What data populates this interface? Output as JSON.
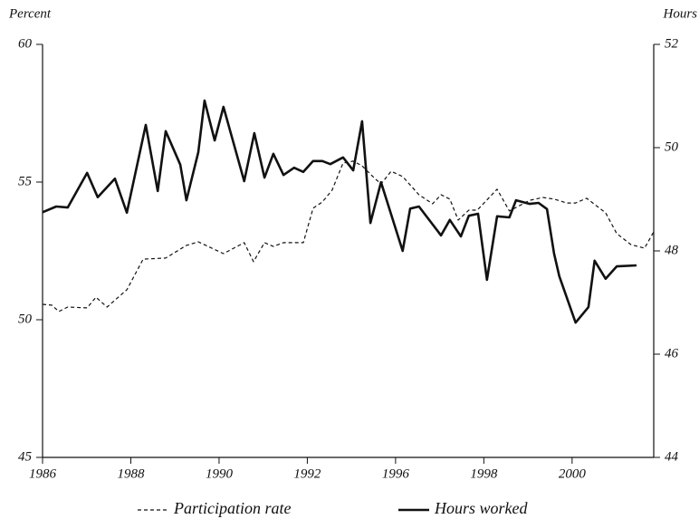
{
  "chart_data": {
    "type": "line",
    "y_label": "Percent",
    "y2_label": "Hours",
    "xlim": [
      1986,
      1999.85
    ],
    "xticks": [
      1986,
      1988,
      1990,
      1992,
      {
        "value": 1994,
        "label": "1996"
      },
      {
        "value": 1996,
        "label": "1998"
      },
      {
        "value": 1998,
        "label": "2000"
      }
    ],
    "ylim": [
      45,
      60
    ],
    "yticks": [
      45,
      50,
      55,
      60
    ],
    "y2lim": [
      44,
      52
    ],
    "y2ticks": [
      44,
      46,
      48,
      50,
      52
    ],
    "grid": false,
    "series": [
      {
        "name": "Participation rate",
        "color": "#111111",
        "dashed": true,
        "axis": "y",
        "x": [
          1986.0,
          1986.21,
          1986.37,
          1986.57,
          1987.01,
          1987.21,
          1987.46,
          1987.91,
          1988.28,
          1988.79,
          1989.26,
          1989.53,
          1990.1,
          1990.57,
          1990.78,
          1991.03,
          1991.23,
          1991.46,
          1991.91,
          1992.13,
          1992.34,
          1992.56,
          1992.81,
          1993.04,
          1993.24,
          1993.51,
          1993.67,
          1993.9,
          1994.16,
          1994.53,
          1994.84,
          1995.03,
          1995.23,
          1995.42,
          1995.66,
          1995.85,
          1996.3,
          1996.58,
          1997.04,
          1997.34,
          1997.59,
          1997.88,
          1998.08,
          1998.33,
          1998.76,
          1999.01,
          1999.33,
          1999.64,
          1999.85
        ],
        "values": [
          50.56,
          50.53,
          50.3,
          50.46,
          50.43,
          50.82,
          50.46,
          51.09,
          52.2,
          52.24,
          52.7,
          52.83,
          52.4,
          52.8,
          52.11,
          52.8,
          52.66,
          52.8,
          52.8,
          54.05,
          54.28,
          54.7,
          55.69,
          55.76,
          55.59,
          55.16,
          54.93,
          55.39,
          55.2,
          54.54,
          54.21,
          54.54,
          54.38,
          53.62,
          53.98,
          53.98,
          54.74,
          53.95,
          54.34,
          54.44,
          54.38,
          54.24,
          54.24,
          54.41,
          53.88,
          53.13,
          52.73,
          52.6,
          53.19
        ]
      },
      {
        "name": "Hours worked",
        "color": "#111111",
        "dashed": false,
        "axis": "y2",
        "x": [
          1986.0,
          1986.31,
          1986.57,
          1987.01,
          1987.25,
          1987.64,
          1987.91,
          1988.34,
          1988.61,
          1988.79,
          1989.12,
          1989.26,
          1989.53,
          1989.67,
          1989.9,
          1990.1,
          1990.57,
          1990.8,
          1991.03,
          1991.23,
          1991.46,
          1991.7,
          1991.91,
          1992.13,
          1992.34,
          1992.52,
          1992.81,
          1993.04,
          1993.24,
          1993.43,
          1993.67,
          1994.16,
          1994.33,
          1994.53,
          1995.03,
          1995.23,
          1995.48,
          1995.66,
          1995.87,
          1996.07,
          1996.3,
          1996.58,
          1996.73,
          1997.04,
          1997.24,
          1997.43,
          1997.59,
          1997.71,
          1998.08,
          1998.37,
          1998.51,
          1998.76,
          1999.01,
          1999.46
        ],
        "values": [
          48.75,
          48.86,
          48.84,
          49.51,
          49.04,
          49.4,
          48.74,
          50.44,
          49.16,
          50.32,
          49.67,
          48.98,
          49.91,
          50.91,
          50.14,
          50.79,
          49.35,
          50.28,
          49.42,
          49.88,
          49.47,
          49.61,
          49.53,
          49.74,
          49.74,
          49.68,
          49.81,
          49.56,
          50.51,
          48.54,
          49.33,
          48.0,
          48.82,
          48.86,
          48.3,
          48.6,
          48.28,
          48.68,
          48.72,
          47.44,
          48.67,
          48.65,
          48.98,
          48.91,
          48.93,
          48.81,
          47.95,
          47.51,
          46.61,
          46.91,
          47.81,
          47.46,
          47.7,
          47.72
        ]
      }
    ]
  }
}
